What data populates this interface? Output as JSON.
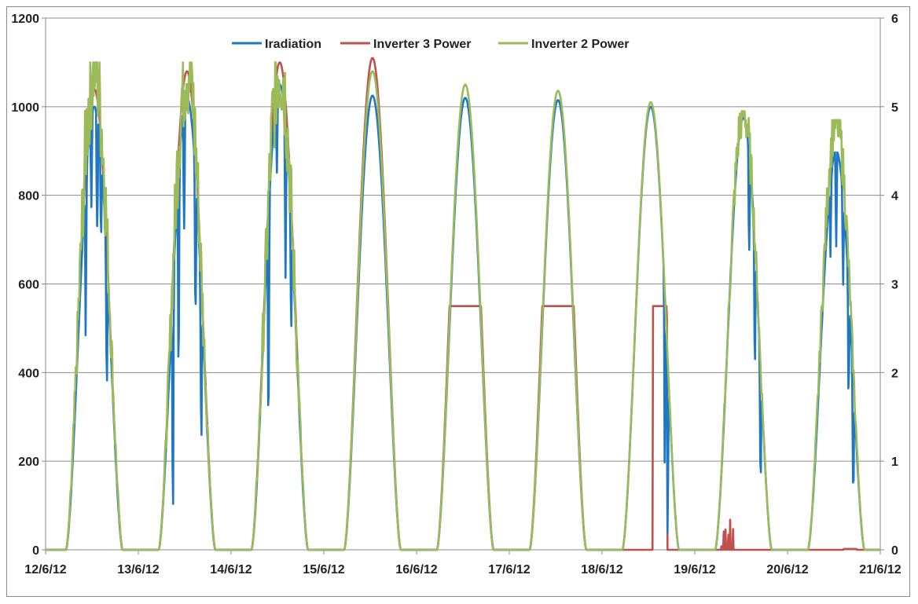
{
  "chart_data": {
    "type": "line",
    "title": "",
    "xlabel": "",
    "ylabel": "",
    "y2label": "",
    "ylim": [
      0,
      1200
    ],
    "y2lim": [
      0,
      6
    ],
    "grid": true,
    "legend_position": "top-center",
    "x_tick_labels": [
      "12/6/12",
      "13/6/12",
      "14/6/12",
      "15/6/12",
      "16/6/12",
      "17/6/12",
      "18/6/12",
      "19/6/12",
      "20/6/12",
      "21/6/12"
    ],
    "y_tick_labels": [
      "0",
      "200",
      "400",
      "600",
      "800",
      "1000",
      "1200"
    ],
    "y2_tick_labels": [
      "0",
      "1",
      "2",
      "3",
      "4",
      "5",
      "6"
    ],
    "series": [
      {
        "name": "Iradiation",
        "color": "#1f77c4",
        "axis": "left",
        "days": [
          {
            "peak": 1000,
            "noise": [
              [
                0.35,
                -420
              ],
              [
                0.45,
                -300
              ],
              [
                0.55,
                -420
              ],
              [
                0.62,
                -250
              ],
              [
                0.72,
                -400
              ]
            ]
          },
          {
            "peak": 1020,
            "noise": [
              [
                0.25,
                -800
              ],
              [
                0.35,
                -650
              ],
              [
                0.45,
                -400
              ],
              [
                0.65,
                -450
              ],
              [
                0.75,
                -500
              ]
            ]
          },
          {
            "peak": 1050,
            "noise": [
              [
                0.3,
                -600
              ],
              [
                0.45,
                -200
              ],
              [
                0.6,
                -550
              ],
              [
                0.7,
                -350
              ]
            ]
          },
          {
            "peak": 1025,
            "noise": []
          },
          {
            "peak": 1020,
            "noise": []
          },
          {
            "peak": 1015,
            "noise": []
          },
          {
            "peak": 1000,
            "noise": [
              [
                0.75,
                -500
              ],
              [
                0.8,
                -600
              ]
            ]
          },
          {
            "peak": 975,
            "noise": [
              [
                0.6,
                -300
              ],
              [
                0.7,
                -350
              ],
              [
                0.8,
                -400
              ]
            ]
          },
          {
            "peak": 900,
            "noise": [
              [
                0.4,
                -200
              ],
              [
                0.5,
                -350
              ],
              [
                0.62,
                -250
              ],
              [
                0.72,
                -400
              ],
              [
                0.8,
                -450
              ]
            ]
          }
        ]
      },
      {
        "name": "Inverter 3 Power",
        "color": "#c0504d",
        "axis": "right",
        "days": [
          {
            "peak": 5.2,
            "clip": null
          },
          {
            "peak": 5.4,
            "clip": null
          },
          {
            "peak": 5.5,
            "clip": null
          },
          {
            "peak": 5.55,
            "clip": null
          },
          {
            "peak": 2.75,
            "clip": 2.75
          },
          {
            "peak": 2.75,
            "clip": 2.75
          },
          {
            "peak": 2.75,
            "clip": 2.75
          },
          {
            "peak": 0.35,
            "clip": 0.35
          },
          {
            "peak": 0.02,
            "clip": 0.02
          }
        ]
      },
      {
        "name": "Inverter 2 Power",
        "color": "#9bbb59",
        "axis": "right",
        "days": [
          {
            "peak": 5.5
          },
          {
            "peak": 5.5
          },
          {
            "peak": 5.5
          },
          {
            "peak": 5.4
          },
          {
            "peak": 5.25
          },
          {
            "peak": 5.18
          },
          {
            "peak": 5.05
          },
          {
            "peak": 4.95
          },
          {
            "peak": 4.85
          }
        ]
      }
    ]
  }
}
